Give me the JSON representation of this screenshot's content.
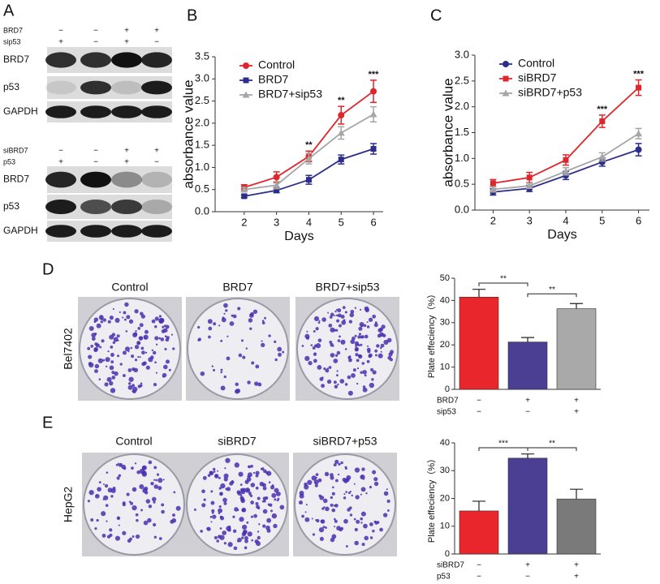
{
  "panel_labels": [
    "A",
    "B",
    "C",
    "D",
    "E"
  ],
  "blots": [
    {
      "conditions": [
        {
          "name": "BRD7",
          "signs": [
            "−",
            "−",
            "+",
            "+"
          ]
        },
        {
          "name": "sip53",
          "signs": [
            "+",
            "−",
            "+",
            "−"
          ]
        }
      ],
      "rows": [
        "BRD7",
        "p53",
        "GAPDH"
      ]
    },
    {
      "conditions": [
        {
          "name": "siBRD7",
          "signs": [
            "−",
            "−",
            "+",
            "+"
          ]
        },
        {
          "name": "p53",
          "signs": [
            "+",
            "−",
            "+",
            "−"
          ]
        }
      ],
      "rows": [
        "BRD7",
        "p53",
        "GAPDH"
      ]
    }
  ],
  "plates": [
    {
      "row_label": "Bel7402",
      "labels": [
        "Control",
        "BRD7",
        "BRD7+sip53"
      ]
    },
    {
      "row_label": "HepG2",
      "labels": [
        "Control",
        "siBRD7",
        "siBRD7+p53"
      ]
    }
  ],
  "chart_data": [
    {
      "type": "line",
      "xlabel": "Days",
      "ylabel": "absorbance value",
      "x": [
        2,
        3,
        4,
        5,
        6
      ],
      "xlim": [
        1.1,
        6.3
      ],
      "xticks": [
        2,
        3,
        4,
        5,
        6
      ],
      "ylim": [
        0,
        3.5
      ],
      "yticks": [
        {
          "value": 0,
          "label": "0.0"
        },
        0.5,
        {
          "value": 1,
          "label": "1.0"
        },
        1.5,
        {
          "value": 2,
          "label": "2.0"
        },
        2.5,
        {
          "value": 3,
          "label": "3.0"
        },
        3.5
      ],
      "series": [
        {
          "name": "Control",
          "color": "#e0262c",
          "marker": "circle",
          "values": [
            0.55,
            0.78,
            1.25,
            2.18,
            2.72
          ],
          "errors": [
            0.06,
            0.12,
            0.12,
            0.2,
            0.25
          ]
        },
        {
          "name": "BRD7",
          "color": "#2d2d8c",
          "marker": "square",
          "values": [
            0.35,
            0.48,
            0.72,
            1.18,
            1.42
          ],
          "errors": [
            0.03,
            0.05,
            0.1,
            0.1,
            0.12
          ]
        },
        {
          "name": "BRD7+sip53",
          "color": "#a6a6a6",
          "marker": "triangle",
          "values": [
            0.5,
            0.6,
            1.2,
            1.78,
            2.2
          ],
          "errors": [
            0.05,
            0.08,
            0.12,
            0.14,
            0.17
          ]
        }
      ],
      "annotations": [
        {
          "x": 4,
          "text": "**"
        },
        {
          "x": 5,
          "text": "**"
        },
        {
          "x": 6,
          "text": "***"
        }
      ]
    },
    {
      "type": "line",
      "xlabel": "Days",
      "ylabel": "absorbance value",
      "x": [
        2,
        3,
        4,
        5,
        6
      ],
      "xlim": [
        1.5,
        6.3
      ],
      "xticks": [
        2,
        3,
        4,
        5,
        6
      ],
      "ylim": [
        0,
        3
      ],
      "yticks": [
        {
          "value": 0,
          "label": "0.0"
        },
        0.5,
        {
          "value": 1,
          "label": "1.0"
        },
        1.5,
        {
          "value": 2,
          "label": "2.0"
        },
        2.5,
        {
          "value": 3,
          "label": "3.0"
        }
      ],
      "series": [
        {
          "name": "Control",
          "color": "#2d2d8c",
          "marker": "circle",
          "values": [
            0.35,
            0.42,
            0.67,
            0.93,
            1.17
          ],
          "errors": [
            0.06,
            0.06,
            0.08,
            0.08,
            0.12
          ]
        },
        {
          "name": "siBRD7",
          "color": "#e0262c",
          "marker": "square",
          "values": [
            0.52,
            0.63,
            0.97,
            1.72,
            2.37
          ],
          "errors": [
            0.07,
            0.1,
            0.1,
            0.12,
            0.15
          ]
        },
        {
          "name": "siBRD7+p53",
          "color": "#a6a6a6",
          "marker": "triangle",
          "values": [
            0.4,
            0.47,
            0.75,
            1.03,
            1.48
          ],
          "errors": [
            0.05,
            0.05,
            0.07,
            0.08,
            0.1
          ]
        }
      ],
      "annotations": [
        {
          "x": 5,
          "text": "***"
        },
        {
          "x": 6,
          "text": "***"
        }
      ]
    },
    {
      "type": "bar",
      "ylabel": "Plate effeciency（%）",
      "categories": [
        null,
        null,
        null
      ],
      "values": [
        41.5,
        21.3,
        36.3
      ],
      "errors": [
        3.5,
        2,
        2.3
      ],
      "colors": [
        "#e8262b",
        "#4b3f94",
        "#a9a9a9"
      ],
      "ylim": [
        0,
        50
      ],
      "yticks": [
        0,
        10,
        20,
        30,
        40,
        50
      ],
      "conditions": [
        {
          "name": "BRD7",
          "signs": [
            "−",
            "+",
            "+"
          ]
        },
        {
          "name": "sip53",
          "signs": [
            "−",
            "−",
            "+"
          ]
        }
      ],
      "brackets": [
        {
          "text": "**",
          "span": [
            0,
            1
          ]
        },
        {
          "text": "**",
          "span": [
            1,
            2
          ]
        }
      ]
    },
    {
      "type": "bar",
      "ylabel": "Plate effeciency（%）",
      "categories": [
        null,
        null,
        null
      ],
      "values": [
        15.5,
        34.5,
        19.8
      ],
      "errors": [
        3.5,
        1.5,
        3.5
      ],
      "colors": [
        "#e8262b",
        "#4b3f94",
        "#7a7a7a"
      ],
      "ylim": [
        0,
        40
      ],
      "yticks": [
        0,
        10,
        20,
        30,
        40
      ],
      "conditions": [
        {
          "name": "siBRD7",
          "signs": [
            "−",
            "+",
            "+"
          ]
        },
        {
          "name": "p53",
          "signs": [
            "−",
            "−",
            "+"
          ]
        }
      ],
      "brackets": [
        {
          "text": "***",
          "span": [
            0,
            1
          ]
        },
        {
          "text": "**",
          "span": [
            1,
            2
          ]
        }
      ]
    }
  ]
}
